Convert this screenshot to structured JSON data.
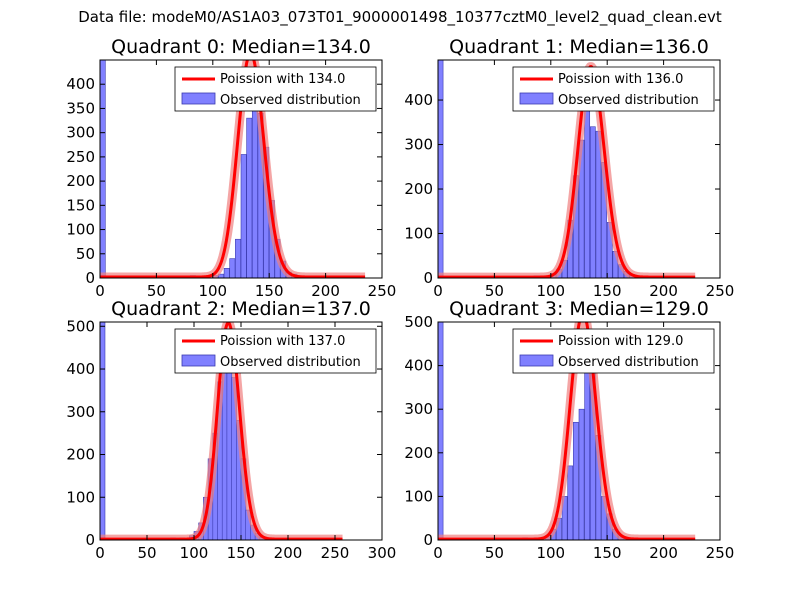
{
  "suptitle": "Data file: modeM0/AS1A03_073T01_9000001498_10377cztM0_level2_quad_clean.evt",
  "colors": {
    "hist_fill": "#8080ff",
    "hist_edge": "#3a3ab0",
    "poisson_line": "#ff0000",
    "poisson_glow": "#f08080"
  },
  "chart_data": [
    {
      "type": "bar",
      "title": "Quadrant 0: Median=134.0",
      "xlim": [
        0,
        250
      ],
      "ylim": [
        0,
        450
      ],
      "xticks": [
        0,
        50,
        100,
        150,
        200,
        250
      ],
      "yticks": [
        0,
        50,
        100,
        150,
        200,
        250,
        300,
        350,
        400
      ],
      "legend": [
        "Poission with 134.0",
        "Observed distribution"
      ],
      "legend_position": "top-right",
      "median": 134.0,
      "bin_width": 4.7,
      "x_max": 235,
      "hist": [
        [
          0,
          450
        ],
        [
          80,
          5
        ],
        [
          85,
          2
        ],
        [
          90,
          3
        ],
        [
          95,
          3
        ],
        [
          100,
          5
        ],
        [
          105,
          8
        ],
        [
          110,
          20
        ],
        [
          115,
          40
        ],
        [
          120,
          80
        ],
        [
          125,
          255
        ],
        [
          130,
          330
        ],
        [
          135,
          420
        ],
        [
          140,
          340
        ],
        [
          145,
          270
        ],
        [
          150,
          160
        ],
        [
          155,
          80
        ],
        [
          160,
          35
        ],
        [
          165,
          12
        ],
        [
          170,
          8
        ]
      ]
    },
    {
      "type": "bar",
      "title": "Quadrant 1: Median=136.0",
      "xlim": [
        0,
        250
      ],
      "ylim": [
        0,
        490
      ],
      "xticks": [
        0,
        50,
        100,
        150,
        200,
        250
      ],
      "yticks": [
        0,
        100,
        200,
        300,
        400
      ],
      "legend": [
        "Poission with 136.0",
        "Observed distribution"
      ],
      "legend_position": "top-right",
      "median": 136.0,
      "bin_width": 4.5,
      "x_max": 228,
      "hist": [
        [
          0,
          490
        ],
        [
          85,
          5
        ],
        [
          90,
          5
        ],
        [
          95,
          5
        ],
        [
          100,
          10
        ],
        [
          105,
          20
        ],
        [
          110,
          40
        ],
        [
          115,
          130
        ],
        [
          120,
          230
        ],
        [
          125,
          310
        ],
        [
          130,
          430
        ],
        [
          135,
          340
        ],
        [
          140,
          330
        ],
        [
          145,
          260
        ],
        [
          150,
          125
        ],
        [
          155,
          60
        ],
        [
          160,
          30
        ],
        [
          165,
          15
        ],
        [
          170,
          8
        ]
      ]
    },
    {
      "type": "bar",
      "title": "Quadrant 2: Median=137.0",
      "xlim": [
        0,
        300
      ],
      "ylim": [
        0,
        510
      ],
      "xticks": [
        0,
        50,
        100,
        150,
        200,
        250,
        300
      ],
      "yticks": [
        0,
        100,
        200,
        300,
        400,
        500
      ],
      "legend": [
        "Poission with 137.0",
        "Observed distribution"
      ],
      "legend_position": "top-right",
      "median": 137.0,
      "bin_width": 5.3,
      "x_max": 258,
      "hist": [
        [
          0,
          510
        ],
        [
          75,
          5
        ],
        [
          85,
          5
        ],
        [
          95,
          10
        ],
        [
          100,
          20
        ],
        [
          105,
          40
        ],
        [
          110,
          100
        ],
        [
          115,
          190
        ],
        [
          120,
          250
        ],
        [
          125,
          370
        ],
        [
          130,
          460
        ],
        [
          135,
          410
        ],
        [
          140,
          380
        ],
        [
          145,
          280
        ],
        [
          150,
          190
        ],
        [
          155,
          70
        ],
        [
          160,
          35
        ],
        [
          165,
          15
        ],
        [
          170,
          6
        ]
      ]
    },
    {
      "type": "bar",
      "title": "Quadrant 3: Median=129.0",
      "xlim": [
        0,
        250
      ],
      "ylim": [
        0,
        500
      ],
      "xticks": [
        0,
        50,
        100,
        150,
        200,
        250
      ],
      "yticks": [
        0,
        100,
        200,
        300,
        400,
        500
      ],
      "legend": [
        "Poission with 129.0",
        "Observed distribution"
      ],
      "legend_position": "top-right",
      "median": 129.0,
      "bin_width": 4.5,
      "x_max": 228,
      "hist": [
        [
          0,
          500
        ],
        [
          75,
          5
        ],
        [
          85,
          5
        ],
        [
          95,
          10
        ],
        [
          100,
          25
        ],
        [
          105,
          50
        ],
        [
          110,
          100
        ],
        [
          115,
          170
        ],
        [
          120,
          270
        ],
        [
          125,
          300
        ],
        [
          130,
          420
        ],
        [
          135,
          470
        ],
        [
          140,
          240
        ],
        [
          145,
          100
        ],
        [
          150,
          60
        ],
        [
          155,
          25
        ],
        [
          160,
          10
        ],
        [
          165,
          5
        ],
        [
          170,
          3
        ]
      ]
    }
  ]
}
